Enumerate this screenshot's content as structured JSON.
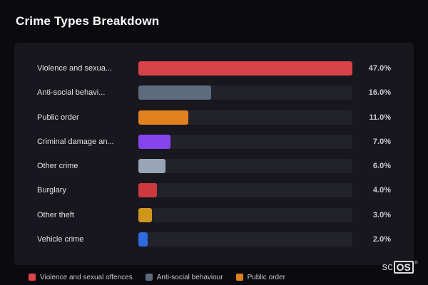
{
  "page": {
    "title": "Crime Types Breakdown"
  },
  "chart_data": {
    "type": "bar",
    "orientation": "horizontal",
    "title": "Crime Types Breakdown",
    "categories": [
      "Violence and sexua...",
      "Anti-social behavi...",
      "Public order",
      "Criminal damage an...",
      "Other crime",
      "Burglary",
      "Other theft",
      "Vehicle crime"
    ],
    "values": [
      47.0,
      16.0,
      11.0,
      7.0,
      6.0,
      4.0,
      3.0,
      2.0
    ],
    "value_labels": [
      "47.0%",
      "16.0%",
      "11.0%",
      "7.0%",
      "6.0%",
      "4.0%",
      "3.0%",
      "2.0%"
    ],
    "bar_colors": [
      "#d8434a",
      "#5c6b7d",
      "#e2811f",
      "#8644ef",
      "#97a5b6",
      "#cd393f",
      "#d0961c",
      "#2e6be0"
    ],
    "xlim": [
      0,
      47
    ],
    "grid": false,
    "legend_position": "bottom",
    "legend": [
      {
        "label": "Violence and sexual offences",
        "color": "#e0434a"
      },
      {
        "label": "Anti-social behaviour",
        "color": "#5c6b7d"
      },
      {
        "label": "Public order",
        "color": "#e2811f"
      }
    ]
  },
  "branding": {
    "prefix": "sc",
    "box": "OS",
    "registered": "®"
  }
}
